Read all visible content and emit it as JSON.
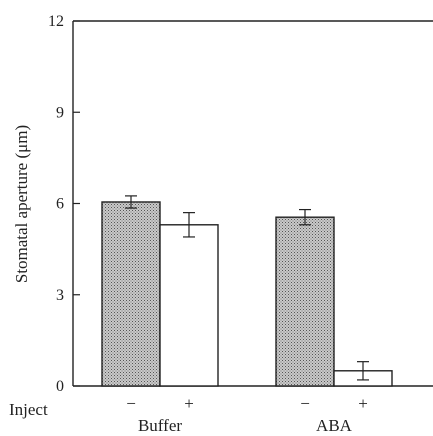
{
  "chart_data": {
    "type": "bar",
    "title": "",
    "ylabel": "Stomatal aperture (μm)",
    "xlabel": "",
    "ylim": [
      0,
      12
    ],
    "yticks": [
      "0",
      "3",
      "6",
      "9",
      "12"
    ],
    "groups": [
      {
        "label": "Buffer",
        "inject": [
          "−",
          "+"
        ],
        "values": [
          6.05,
          5.3
        ],
        "errors": [
          0.2,
          0.4
        ]
      },
      {
        "label": "ABA",
        "inject": [
          "−",
          "+"
        ],
        "values": [
          5.55,
          0.5
        ],
        "errors": [
          0.25,
          0.3
        ]
      }
    ],
    "inject_label": "Inject",
    "bar_styles": [
      "stippled",
      "open"
    ],
    "grid": false,
    "legend": "none",
    "colors": {
      "stipple_bg": "#c9c9c9",
      "stipple_dot": "#555555",
      "axis": "#222222",
      "open_fill": "#ffffff"
    }
  }
}
